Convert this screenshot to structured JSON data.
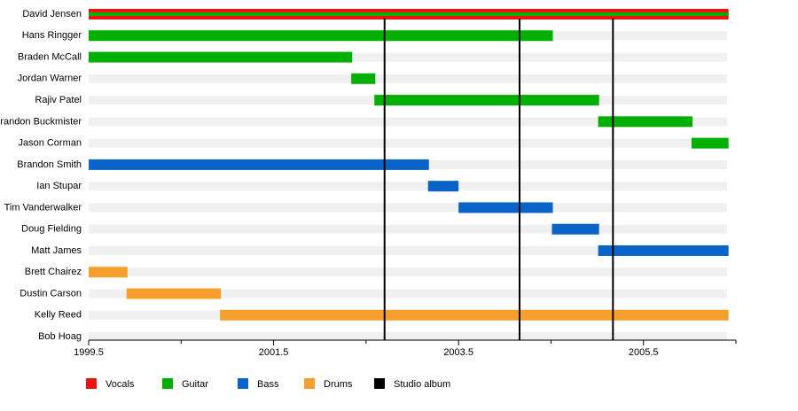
{
  "chart_data": {
    "type": "timeline",
    "categories": [
      "David Jensen",
      "Hans Ringger",
      "Braden McCall",
      "Jordan Warner",
      "Rajiv Patel",
      "Brandon Buckmister",
      "Jason Corman",
      "Brandon Smith",
      "Ian Stupar",
      "Tim Vanderwalker",
      "Doug Fielding",
      "Matt James",
      "Brett Chairez",
      "Dustin Carson",
      "Kelly Reed",
      "Bob Hoag"
    ],
    "series": [
      {
        "name": "Vocals",
        "color": "#ee1111",
        "values": [
          [
            1999.5,
            2006.42
          ],
          null,
          null,
          null,
          null,
          null,
          null,
          null,
          null,
          null,
          null,
          null,
          null,
          null,
          null,
          null
        ]
      },
      {
        "name": "Guitar",
        "color": "#00b000",
        "values": [
          [
            1999.5,
            2006.42
          ],
          [
            1999.5,
            2004.52
          ],
          [
            1999.5,
            2002.35
          ],
          [
            2002.34,
            2002.6
          ],
          [
            2002.59,
            2005.02
          ],
          [
            2005.01,
            2006.03
          ],
          [
            2006.02,
            2006.42
          ],
          null,
          null,
          null,
          null,
          null,
          null,
          null,
          null,
          null
        ]
      },
      {
        "name": "Bass",
        "color": "#0a64c8",
        "values": [
          null,
          null,
          null,
          null,
          null,
          null,
          null,
          [
            1999.5,
            2003.18
          ],
          [
            2003.17,
            2003.5
          ],
          [
            2003.5,
            2004.52
          ],
          [
            2004.51,
            2005.02
          ],
          [
            2005.01,
            2006.42
          ],
          null,
          null,
          null,
          null
        ]
      },
      {
        "name": "Drums",
        "color": "#f5a02d",
        "values": [
          null,
          null,
          null,
          null,
          null,
          null,
          null,
          null,
          null,
          null,
          null,
          null,
          [
            1999.5,
            1999.92
          ],
          [
            1999.91,
            2000.93
          ],
          [
            2000.92,
            2006.42
          ],
          null
        ]
      }
    ],
    "albums": {
      "name": "Studio album",
      "color": "#000000",
      "x": [
        2002.7,
        2004.16,
        2005.17
      ]
    },
    "xlim": [
      1999.5,
      2006.5
    ],
    "xticks": [
      {
        "value": 1999.5,
        "label": "1999.5"
      },
      {
        "value": 2001.5,
        "label": "2001.5"
      },
      {
        "value": 2003.5,
        "label": "2003.5"
      },
      {
        "value": 2005.5,
        "label": "2005.5"
      }
    ],
    "xminorticks": [
      2000.5,
      2002.5,
      2004.5,
      2006.5
    ]
  }
}
